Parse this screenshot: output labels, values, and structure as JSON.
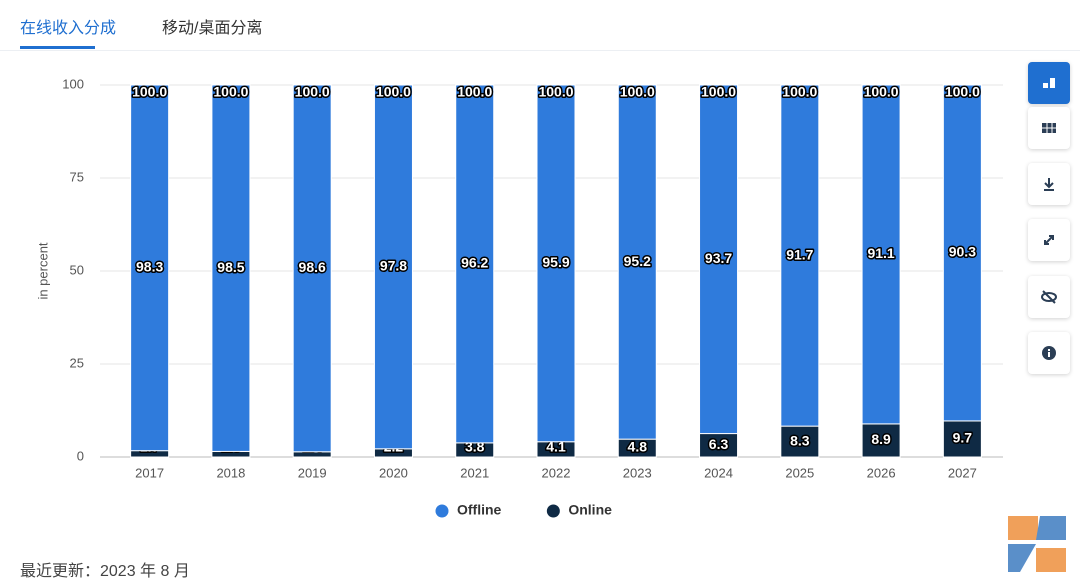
{
  "tabs": [
    "在线收入分成",
    "移动/桌面分离"
  ],
  "footer": "最近更新：2023 年 8 月",
  "chart_data": {
    "type": "stacked_bar",
    "ylabel": "in percent",
    "categories": [
      "2017",
      "2018",
      "2019",
      "2020",
      "2021",
      "2022",
      "2023",
      "2024",
      "2025",
      "2026",
      "2027"
    ],
    "series": [
      {
        "name": "Offline",
        "color": "#2f7bdc",
        "values": [
          98.3,
          98.5,
          98.6,
          97.8,
          96.2,
          95.9,
          95.2,
          93.7,
          91.7,
          91.1,
          90.3
        ]
      },
      {
        "name": "Online",
        "color": "#0f2a44",
        "values": [
          1.7,
          1.5,
          1.4,
          2.2,
          3.8,
          4.1,
          4.8,
          6.3,
          8.3,
          8.9,
          9.7
        ]
      }
    ],
    "totals": [
      100,
      100,
      100,
      100,
      100,
      100,
      100,
      100,
      100,
      100,
      100
    ],
    "total_value_labels": [
      "100.0",
      "100.0",
      "100.0",
      "100.0",
      "100.0",
      "100.0",
      "100.0",
      "100.0",
      "100.0",
      "100.0",
      "100.0"
    ],
    "ylim": [
      0,
      100
    ],
    "yticks": [
      0,
      25,
      50,
      75,
      100
    ],
    "grid": true,
    "legend": "bottom"
  }
}
